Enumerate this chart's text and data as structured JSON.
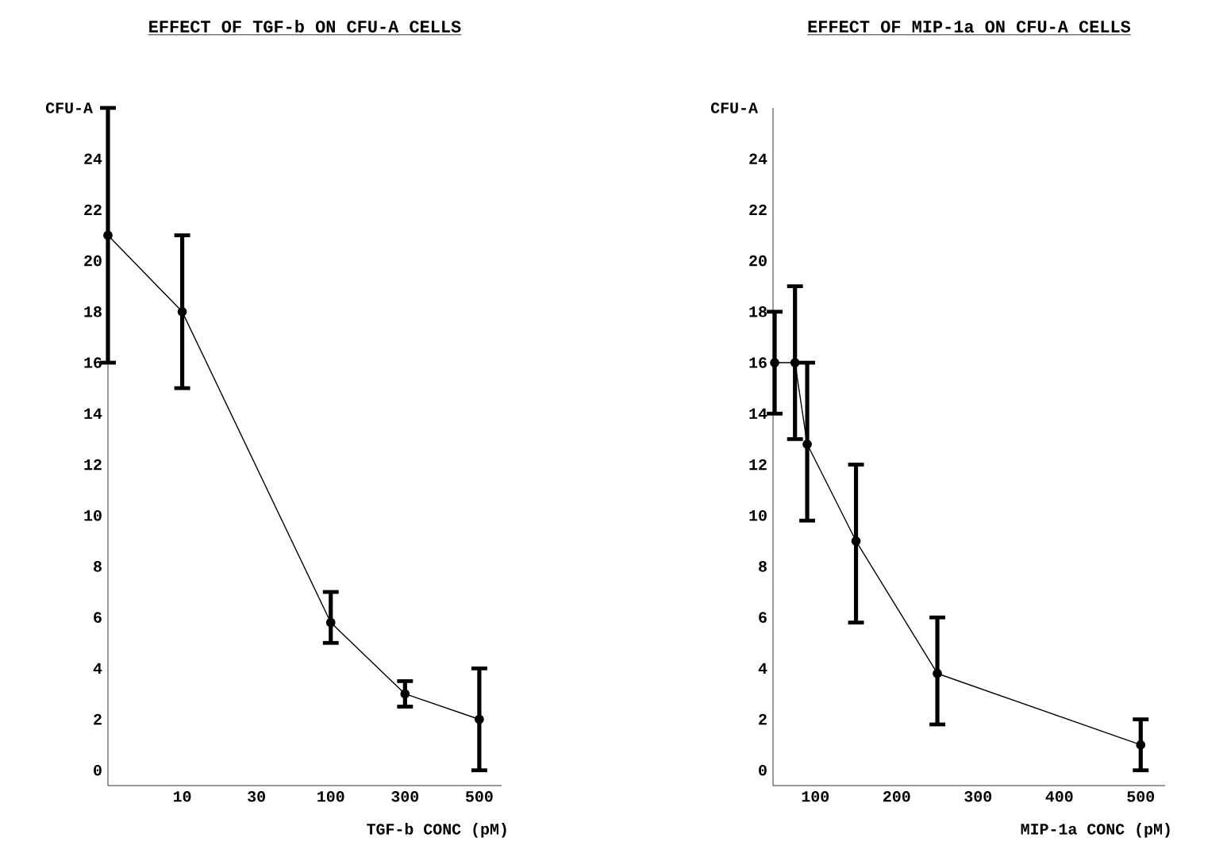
{
  "chart_data": [
    {
      "type": "line",
      "title": "EFFECT OF TGF-b ON CFU-A CELLS",
      "xlabel": "TGF-b CONC (pM)",
      "ylabel": "CFU-A",
      "categories": [
        null,
        "10",
        "30",
        "100",
        "300",
        "500"
      ],
      "series": [
        {
          "color": "#000000",
          "values": [
            21,
            18,
            null,
            5.8,
            3,
            2
          ],
          "errors": [
            [
              16,
              26
            ],
            [
              15,
              21
            ],
            null,
            [
              5,
              7
            ],
            [
              2.5,
              3.5
            ],
            [
              0,
              4
            ]
          ]
        }
      ],
      "ylim": [
        -0.6,
        26
      ],
      "yticks": [
        0,
        2,
        4,
        6,
        8,
        10,
        12,
        14,
        16,
        18,
        20,
        22,
        24
      ],
      "marker": "circle",
      "line_style": "solid"
    },
    {
      "type": "line",
      "title": "EFFECT OF MIP-1a ON CFU-A CELLS",
      "xlabel": "MIP-1a CONC (pM)",
      "ylabel": "CFU-A",
      "series": [
        {
          "color": "#000000",
          "x": [
            50,
            75,
            90,
            150,
            250,
            500
          ],
          "values": [
            16,
            16,
            12.8,
            9,
            3.8,
            1
          ],
          "errors": [
            [
              14,
              18
            ],
            [
              13,
              19
            ],
            [
              9.8,
              16
            ],
            [
              5.8,
              12
            ],
            [
              1.8,
              6
            ],
            [
              0,
              2
            ]
          ]
        }
      ],
      "xlim": [
        48,
        530
      ],
      "xticks": [
        100,
        200,
        300,
        400,
        500
      ],
      "ylim": [
        -0.6,
        26
      ],
      "yticks": [
        0,
        2,
        4,
        6,
        8,
        10,
        12,
        14,
        16,
        18,
        20,
        22,
        24
      ],
      "marker": "circle",
      "line_style": "solid"
    }
  ]
}
